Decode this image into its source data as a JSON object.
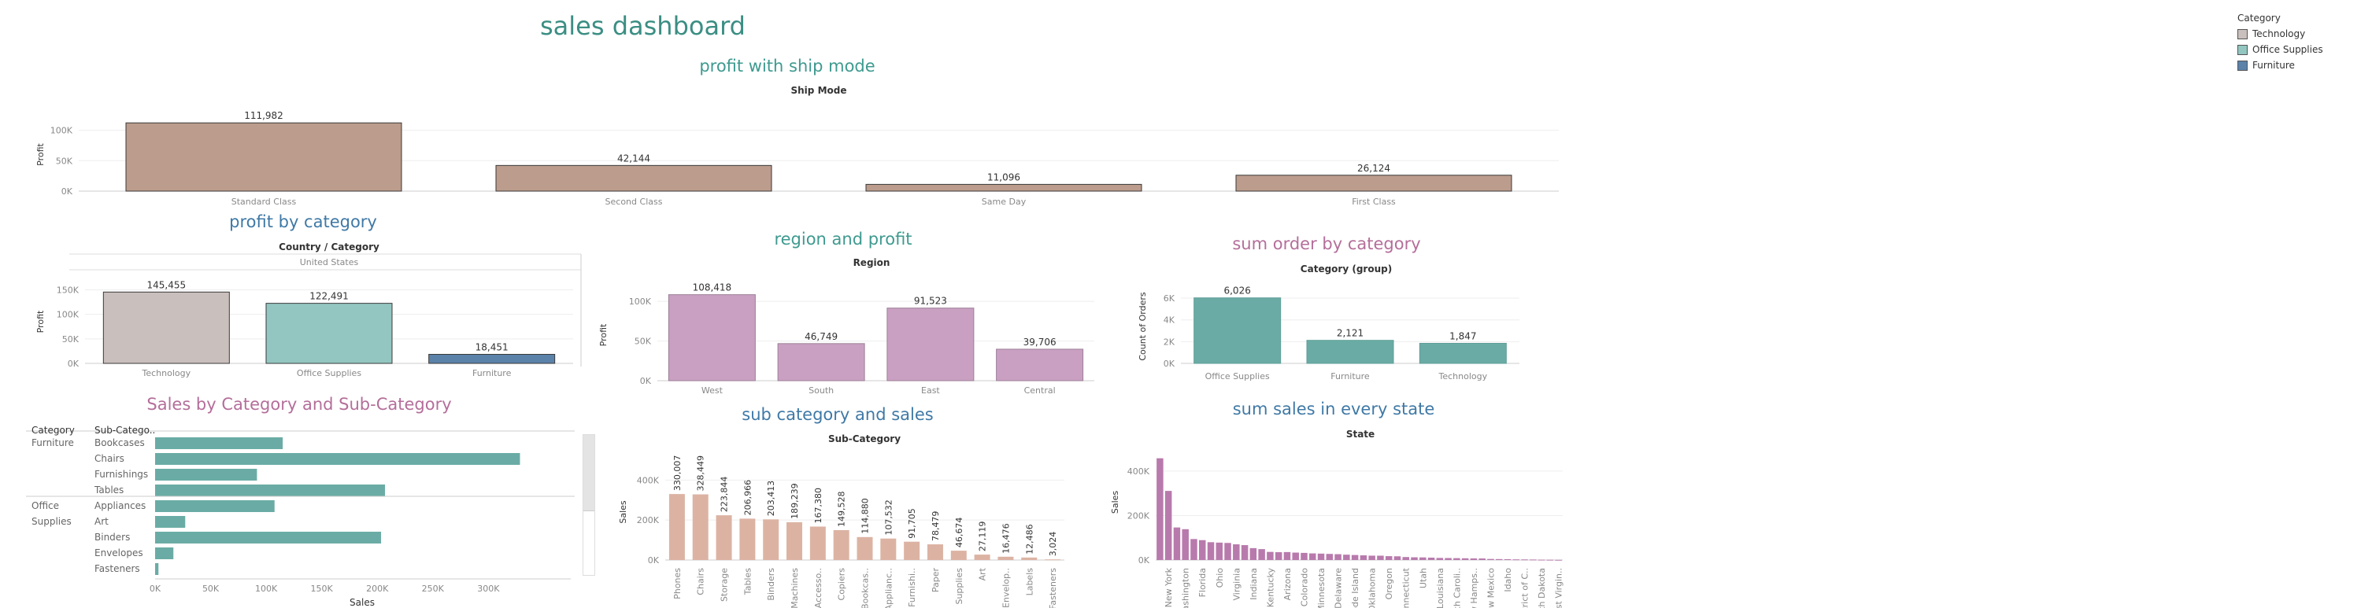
{
  "dashboard": {
    "title": "sales dashboard"
  },
  "legend": {
    "title": "Category",
    "items": [
      {
        "label": "Technology",
        "color": "#c9bfbc"
      },
      {
        "label": "Office Supplies",
        "color": "#93c6c0"
      },
      {
        "label": "Furniture",
        "color": "#5b82a9"
      }
    ]
  },
  "chart_data": [
    {
      "id": "ship",
      "type": "bar",
      "title": "profit with ship mode",
      "header": "Ship Mode",
      "ylabel": "Profit",
      "categories": [
        "Standard Class",
        "Second Class",
        "Same Day",
        "First Class"
      ],
      "values": [
        111982,
        42144,
        11096,
        26124
      ],
      "labels": [
        "111,982",
        "42,144",
        "11,096",
        "26,124"
      ],
      "ylim": [
        0,
        120000
      ],
      "yticks": [
        {
          "v": 100000,
          "t": "100K"
        },
        {
          "v": 50000,
          "t": "50K"
        },
        {
          "v": 0,
          "t": "0K"
        }
      ],
      "color": "#bc9c8c"
    },
    {
      "id": "cat",
      "type": "bar",
      "title": "profit by category",
      "header": "Country / Category",
      "subheader": "United States",
      "ylabel": "Profit",
      "categories": [
        "Technology",
        "Office Supplies",
        "Furniture"
      ],
      "values": [
        145455,
        122491,
        18451
      ],
      "labels": [
        "145,455",
        "122,491",
        "18,451"
      ],
      "ylim": [
        0,
        170000
      ],
      "yticks": [
        {
          "v": 150000,
          "t": "150K"
        },
        {
          "v": 100000,
          "t": "100K"
        },
        {
          "v": 50000,
          "t": "50K"
        },
        {
          "v": 0,
          "t": "0K"
        }
      ],
      "colors": [
        "#c9bfbc",
        "#93c6c0",
        "#5b82a9"
      ]
    },
    {
      "id": "region",
      "type": "bar",
      "title": "region and profit",
      "header": "Region",
      "ylabel": "Profit",
      "categories": [
        "West",
        "South",
        "East",
        "Central"
      ],
      "values": [
        108418,
        46749,
        91523,
        39706
      ],
      "labels": [
        "108,418",
        "46,749",
        "91,523",
        "39,706"
      ],
      "ylim": [
        0,
        115000
      ],
      "yticks": [
        {
          "v": 100000,
          "t": "100K"
        },
        {
          "v": 50000,
          "t": "50K"
        },
        {
          "v": 0,
          "t": "0K"
        }
      ],
      "color": "#c9a0c2"
    },
    {
      "id": "orders",
      "type": "bar",
      "title": "sum order by category",
      "header": "Category (group)",
      "ylabel": "Count of Orders",
      "categories": [
        "Office Supplies",
        "Furniture",
        "Technology"
      ],
      "values": [
        6026,
        2121,
        1847
      ],
      "labels": [
        "6,026",
        "2,121",
        "1,847"
      ],
      "ylim": [
        0,
        6800
      ],
      "yticks": [
        {
          "v": 6000,
          "t": "6K"
        },
        {
          "v": 4000,
          "t": "4K"
        },
        {
          "v": 2000,
          "t": "2K"
        },
        {
          "v": 0,
          "t": "0K"
        }
      ],
      "color": "#6aaca5"
    },
    {
      "id": "subcat",
      "type": "bar",
      "orientation": "horizontal",
      "title": "Sales by Category and Sub-Category",
      "row_headers": [
        "Category",
        "Sub-Catego.."
      ],
      "xlabel": "Sales",
      "groups": [
        {
          "name": "Furniture",
          "items": [
            "Bookcases",
            "Chairs",
            "Furnishings",
            "Tables"
          ]
        },
        {
          "name": "Office Supplies",
          "items": [
            "Appliances",
            "Art",
            "Binders",
            "Envelopes",
            "Fasteners"
          ]
        }
      ],
      "values": [
        114880,
        328449,
        91705,
        206966,
        107532,
        27119,
        203413,
        16476,
        3024
      ],
      "xlim": [
        0,
        360000
      ],
      "xticks": [
        {
          "v": 0,
          "t": "0K"
        },
        {
          "v": 50000,
          "t": "50K"
        },
        {
          "v": 100000,
          "t": "100K"
        },
        {
          "v": 150000,
          "t": "150K"
        },
        {
          "v": 200000,
          "t": "200K"
        },
        {
          "v": 250000,
          "t": "250K"
        },
        {
          "v": 300000,
          "t": "300K"
        }
      ],
      "color": "#6aaca5"
    },
    {
      "id": "subsales",
      "type": "bar",
      "title": "sub category and sales",
      "header": "Sub-Category",
      "ylabel": "Sales",
      "categories": [
        "Phones",
        "Chairs",
        "Storage",
        "Tables",
        "Binders",
        "Machines",
        "Accesso..",
        "Copiers",
        "Bookcas..",
        "Applianc..",
        "Furnishi..",
        "Paper",
        "Supplies",
        "Art",
        "Envelop..",
        "Labels",
        "Fasteners"
      ],
      "values": [
        330007,
        328449,
        223844,
        206966,
        203413,
        189239,
        167380,
        149528,
        114880,
        107532,
        91705,
        78479,
        46674,
        27119,
        16476,
        12486,
        3024
      ],
      "labels": [
        "330,007",
        "328,449",
        "223,844",
        "206,966",
        "203,413",
        "189,239",
        "167,380",
        "149,528",
        "114,880",
        "107,532",
        "91,705",
        "78,479",
        "46,674",
        "27,119",
        "16,476",
        "12,486",
        "3,024"
      ],
      "ylim": [
        0,
        480000
      ],
      "yticks": [
        {
          "v": 400000,
          "t": "400K"
        },
        {
          "v": 200000,
          "t": "200K"
        },
        {
          "v": 0,
          "t": "0K"
        }
      ],
      "color": "#dcb3a3"
    },
    {
      "id": "state",
      "type": "bar",
      "title": "sum sales in every state",
      "header": "State",
      "ylabel": "Sales",
      "categories": [
        "",
        "New York",
        "",
        "Washington",
        "",
        "Florida",
        "",
        "Ohio",
        "",
        "Virginia",
        "",
        "Indiana",
        "",
        "Kentucky",
        "",
        "Arizona",
        "",
        "Colorado",
        "",
        "Minnesota",
        "",
        "Delaware",
        "",
        "Rhode Island",
        "",
        "Oklahoma",
        "",
        "Oregon",
        "",
        "Connecticut",
        "",
        "Utah",
        "",
        "Louisiana",
        "",
        "South Caroli..",
        "",
        "New Hamps..",
        "",
        "New Mexico",
        "",
        "Idaho",
        "",
        "District of C..",
        "",
        "North Dakota",
        "",
        "West Virgin.."
      ],
      "values": [
        457688,
        310876,
        146388,
        138641,
        94389,
        89474,
        80166,
        78258,
        76781,
        70636,
        67027,
        53556,
        49096,
        36592,
        35282,
        35764,
        33383,
        32108,
        29834,
        28834,
        27475,
        26328,
        24050,
        22558,
        21079,
        19683,
        19510,
        17432,
        16731,
        13385,
        12286,
        11678,
        10757,
        9377,
        8942,
        8446,
        7875,
        7292,
        7036,
        4784,
        4206,
        3749,
        2865,
        2638,
        2244,
        1579,
        1315,
        920
      ],
      "ylim": [
        0,
        520000
      ],
      "yticks": [
        {
          "v": 400000,
          "t": "400K"
        },
        {
          "v": 200000,
          "t": "200K"
        },
        {
          "v": 0,
          "t": "0K"
        }
      ],
      "color": "#b87aac"
    }
  ]
}
